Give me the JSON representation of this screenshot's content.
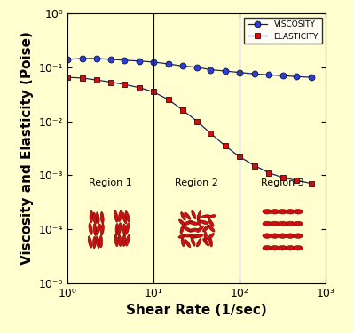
{
  "chart_data": {
    "type": "line",
    "x_label": "Shear Rate (1/sec)",
    "y_label": "Viscosity and Elasticity (Poise)",
    "x": [
      1.0,
      1.5,
      2.2,
      3.2,
      4.6,
      6.8,
      10,
      15,
      22,
      32,
      46,
      68,
      100,
      150,
      220,
      320,
      460,
      680
    ],
    "series": [
      {
        "name": "VISCOSITY",
        "color": "#2b3fd0",
        "marker": "circle",
        "line_style": "solid",
        "values": [
          0.14,
          0.145,
          0.145,
          0.14,
          0.135,
          0.13,
          0.125,
          0.115,
          0.105,
          0.1,
          0.09,
          0.085,
          0.08,
          0.075,
          0.072,
          0.07,
          0.067,
          0.065
        ]
      },
      {
        "name": "ELASTICITY",
        "color": "#d01010",
        "marker": "square",
        "line_style": "solid",
        "values": [
          0.065,
          0.063,
          0.058,
          0.053,
          0.048,
          0.042,
          0.035,
          0.025,
          0.016,
          0.01,
          0.006,
          0.0035,
          0.0022,
          0.0015,
          0.0011,
          0.0009,
          0.0008,
          0.0007
        ]
      }
    ],
    "region_boundaries": [
      10,
      100
    ],
    "regions": [
      "Region 1",
      "Region 2",
      "Region 3"
    ],
    "log": true,
    "grid": false,
    "legend": "upper right",
    "xlim": [
      1,
      1000
    ],
    "xticks": [
      {
        "value": 1,
        "label": "10⁰"
      },
      {
        "value": 10,
        "label": "10¹"
      },
      {
        "value": 100,
        "label": "10²"
      },
      {
        "value": 1000,
        "label": "10³"
      }
    ],
    "ylim": [
      1e-05,
      1
    ],
    "yticks": [
      {
        "value": 1e-05,
        "label": "10⁻⁵"
      },
      {
        "value": 0.0001,
        "label": "10⁻⁴"
      },
      {
        "value": 0.001,
        "label": "10⁻³"
      },
      {
        "value": 0.01,
        "label": "10⁻²"
      },
      {
        "value": 0.1,
        "label": "10⁻¹"
      },
      {
        "value": 1,
        "label": "10⁰"
      }
    ]
  }
}
